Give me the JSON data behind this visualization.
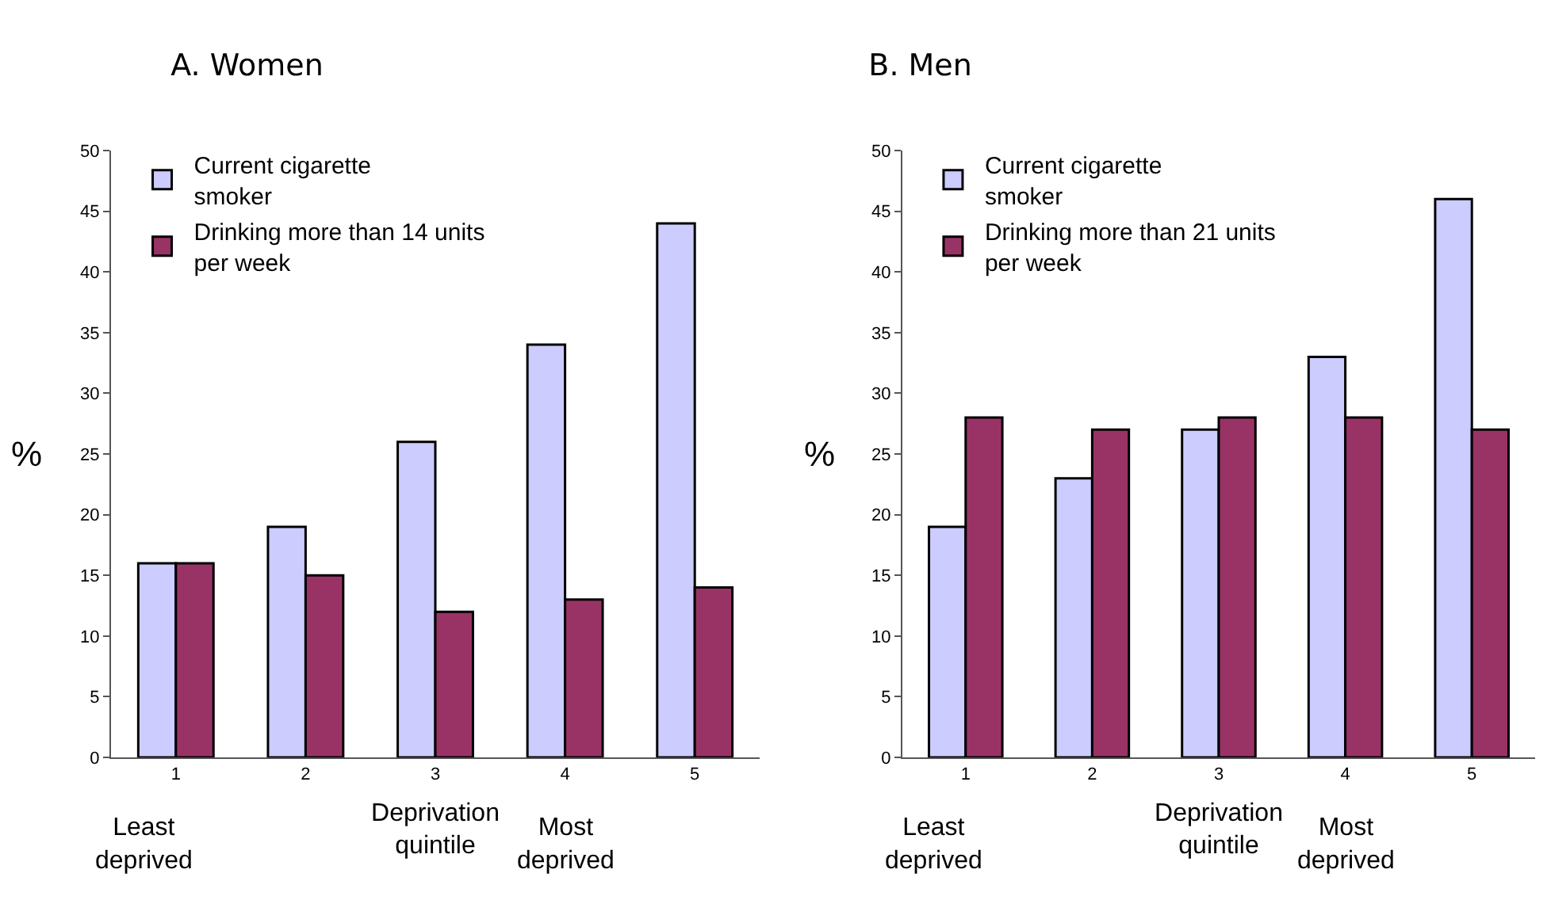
{
  "chart_data": [
    {
      "type": "bar",
      "title": "A. Women",
      "xlabel": "Deprivation quintile",
      "ylabel": "%",
      "categories": [
        "1",
        "2",
        "3",
        "4",
        "5"
      ],
      "series": [
        {
          "name": "Current cigarette smoker",
          "color": "#ccccff",
          "values": [
            16,
            19,
            26,
            34,
            44
          ]
        },
        {
          "name": "Drinking more than 14 units per week",
          "color": "#993366",
          "values": [
            16,
            15,
            12,
            13,
            14
          ]
        }
      ],
      "ylim": [
        0,
        50
      ],
      "yticks": [
        0,
        5,
        10,
        15,
        20,
        25,
        30,
        35,
        40,
        45,
        50
      ],
      "grid": false,
      "legend": "top left",
      "annotations": [
        "Least deprived",
        "Most deprived"
      ]
    },
    {
      "type": "bar",
      "title": "B. Men",
      "xlabel": "Deprivation quintile",
      "ylabel": "%",
      "categories": [
        "1",
        "2",
        "3",
        "4",
        "5"
      ],
      "series": [
        {
          "name": "Current cigarette smoker",
          "color": "#ccccff",
          "values": [
            19,
            23,
            27,
            33,
            46
          ]
        },
        {
          "name": "Drinking more than 21 units per week",
          "color": "#993366",
          "values": [
            28,
            27,
            28,
            28,
            27
          ]
        }
      ],
      "ylim": [
        0,
        50
      ],
      "yticks": [
        0,
        5,
        10,
        15,
        20,
        25,
        30,
        35,
        40,
        45,
        50
      ],
      "grid": false,
      "legend": "top left",
      "annotations": [
        "Least deprived",
        "Most deprived"
      ]
    }
  ]
}
